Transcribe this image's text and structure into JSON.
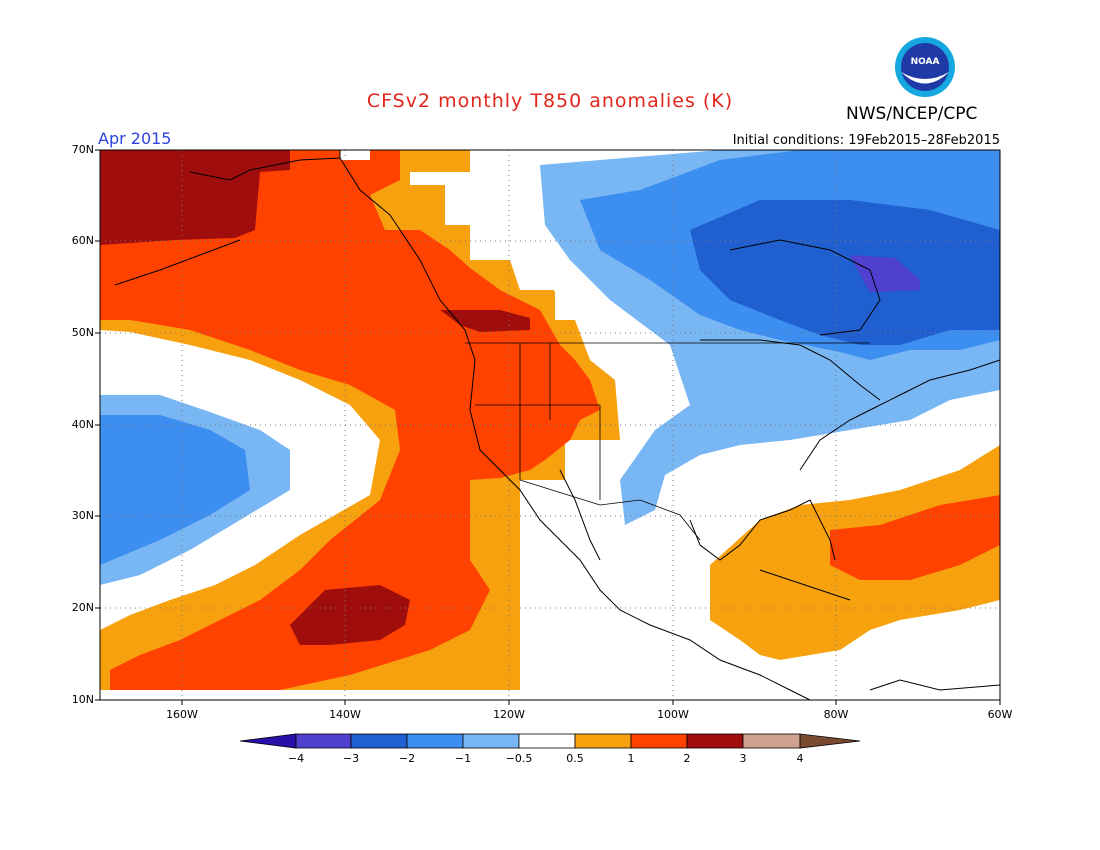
{
  "header": {
    "title": "CFSv2 monthly T850 anomalies (K)",
    "org": "NWS/NCEP/CPC",
    "valid": "Apr 2015",
    "initial_conditions": "Initial conditions: 19Feb2015–28Feb2015",
    "logo_text": "NOAA"
  },
  "axes": {
    "lat_labels": [
      "70N",
      "60N",
      "50N",
      "40N",
      "30N",
      "20N",
      "10N"
    ],
    "lon_labels": [
      "160W",
      "140W",
      "120W",
      "100W",
      "80W",
      "60W"
    ]
  },
  "colorbar": {
    "labels": [
      "−4",
      "−3",
      "−2",
      "−1",
      "−0.5",
      "0.5",
      "1",
      "2",
      "3",
      "4"
    ],
    "colors": [
      "#2a0fa8",
      "#5040d0",
      "#1f5fd0",
      "#3c8ef0",
      "#79b6f4",
      "#ffffff",
      "#f7a10f",
      "#ff4200",
      "#a00d0d",
      "#cfa190",
      "#7a4a30"
    ]
  },
  "anomaly_classes": {
    "neg_lt_-3": "#5040d0",
    "neg_-3_-2": "#1f5fd0",
    "neg_-2_-1": "#3c8ef0",
    "neg_-1_-0.5": "#79b6f4",
    "pos_0.5_1": "#f7a10f",
    "pos_1_2": "#ff4200",
    "pos_2_3": "#a00d0d"
  }
}
